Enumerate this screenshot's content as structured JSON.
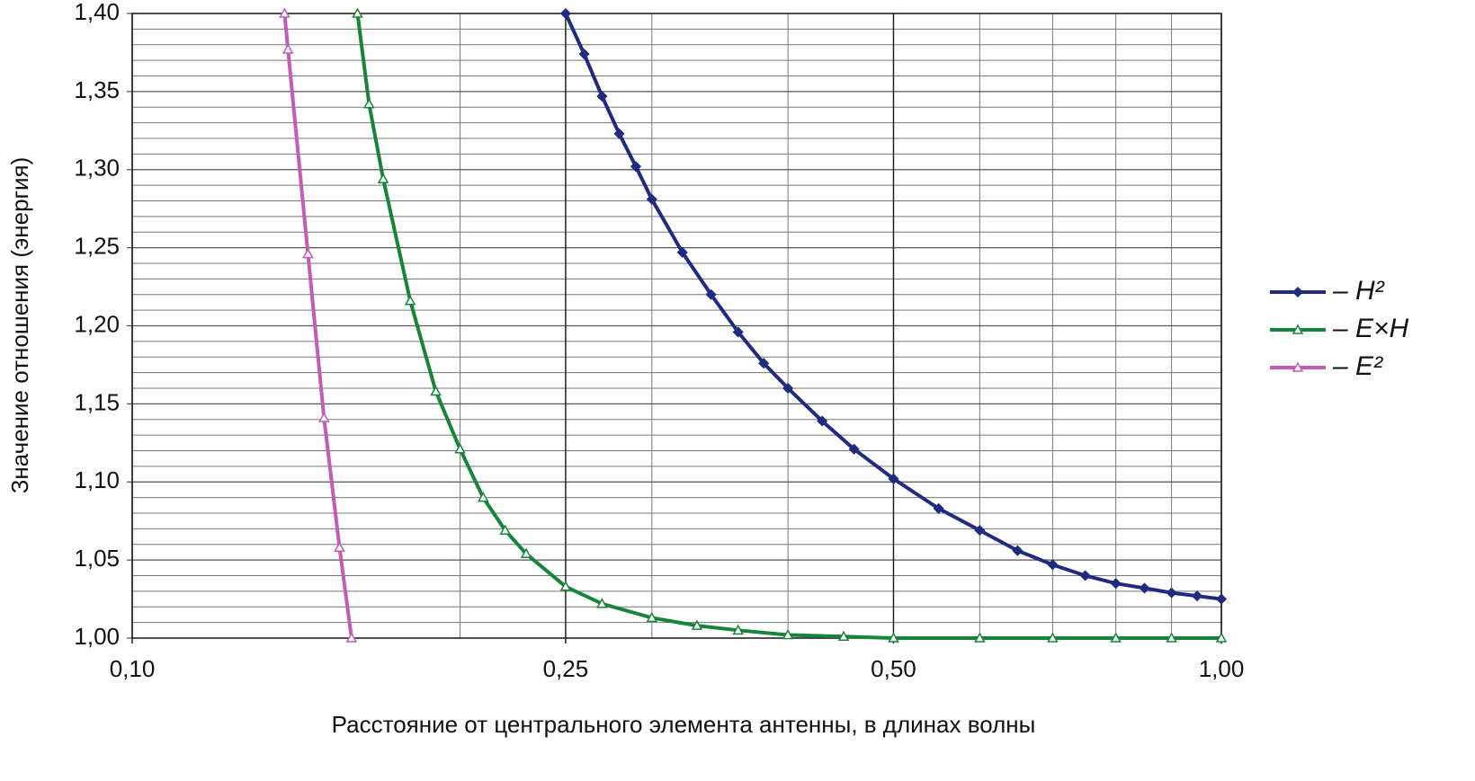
{
  "chart_data": {
    "type": "line",
    "xlabel": "Расстояние от центрального элемента антенны, в длинах волны",
    "ylabel": "Значение отношения (энергия)",
    "xscale": "log",
    "xlim": [
      0.1,
      1.0
    ],
    "ylim": [
      1.0,
      1.4
    ],
    "xticks": [
      {
        "value": 0.1,
        "label": "0,10"
      },
      {
        "value": 0.25,
        "label": "0,25"
      },
      {
        "value": 0.5,
        "label": "0,50"
      },
      {
        "value": 1.0,
        "label": "1,00"
      }
    ],
    "yticks": [
      {
        "value": 1.0,
        "label": "1,00"
      },
      {
        "value": 1.05,
        "label": "1,05"
      },
      {
        "value": 1.1,
        "label": "1,10"
      },
      {
        "value": 1.15,
        "label": "1,15"
      },
      {
        "value": 1.2,
        "label": "1,20"
      },
      {
        "value": 1.25,
        "label": "1,25"
      },
      {
        "value": 1.3,
        "label": "1,30"
      },
      {
        "value": 1.35,
        "label": "1,35"
      },
      {
        "value": 1.4,
        "label": "1,40"
      }
    ],
    "xgrid": [
      0.2,
      0.3,
      0.4,
      0.6,
      0.7,
      0.8,
      0.9
    ],
    "ygrid": [
      1.01,
      1.02,
      1.03,
      1.04,
      1.06,
      1.07,
      1.08,
      1.09,
      1.11,
      1.12,
      1.13,
      1.14,
      1.16,
      1.17,
      1.18,
      1.19,
      1.21,
      1.22,
      1.23,
      1.24,
      1.26,
      1.27,
      1.28,
      1.29,
      1.31,
      1.32,
      1.33,
      1.34,
      1.36,
      1.37,
      1.38,
      1.39
    ],
    "grid": true,
    "legend": "right",
    "series": [
      {
        "name": "– H²",
        "color": "#1f2a80",
        "marker": "diamond",
        "x": [
          0.25,
          0.26,
          0.27,
          0.28,
          0.29,
          0.3,
          0.32,
          0.34,
          0.36,
          0.38,
          0.4,
          0.43,
          0.46,
          0.5,
          0.55,
          0.6,
          0.65,
          0.7,
          0.75,
          0.8,
          0.85,
          0.9,
          0.95,
          1.0
        ],
        "values": [
          1.4,
          1.374,
          1.347,
          1.323,
          1.302,
          1.281,
          1.247,
          1.22,
          1.196,
          1.176,
          1.16,
          1.139,
          1.121,
          1.102,
          1.083,
          1.069,
          1.056,
          1.047,
          1.04,
          1.035,
          1.032,
          1.029,
          1.027,
          1.025
        ]
      },
      {
        "name": "– E×H",
        "color": "#16853a",
        "marker": "triangle",
        "x": [
          0.161,
          0.165,
          0.17,
          0.18,
          0.19,
          0.2,
          0.21,
          0.22,
          0.23,
          0.25,
          0.27,
          0.3,
          0.33,
          0.36,
          0.4,
          0.45,
          0.5,
          0.6,
          0.7,
          0.8,
          0.9,
          1.0
        ],
        "values": [
          1.4,
          1.342,
          1.294,
          1.216,
          1.158,
          1.121,
          1.09,
          1.069,
          1.054,
          1.033,
          1.022,
          1.013,
          1.008,
          1.005,
          1.002,
          1.001,
          1.0,
          1.0,
          1.0,
          1.0,
          1.0,
          1.0
        ]
      },
      {
        "name": "– E²",
        "color": "#c45bb5",
        "marker": "triangle",
        "x": [
          0.138,
          0.139,
          0.145,
          0.15,
          0.155,
          0.159
        ],
        "values": [
          1.4,
          1.377,
          1.246,
          1.141,
          1.058,
          1.0
        ]
      }
    ]
  }
}
